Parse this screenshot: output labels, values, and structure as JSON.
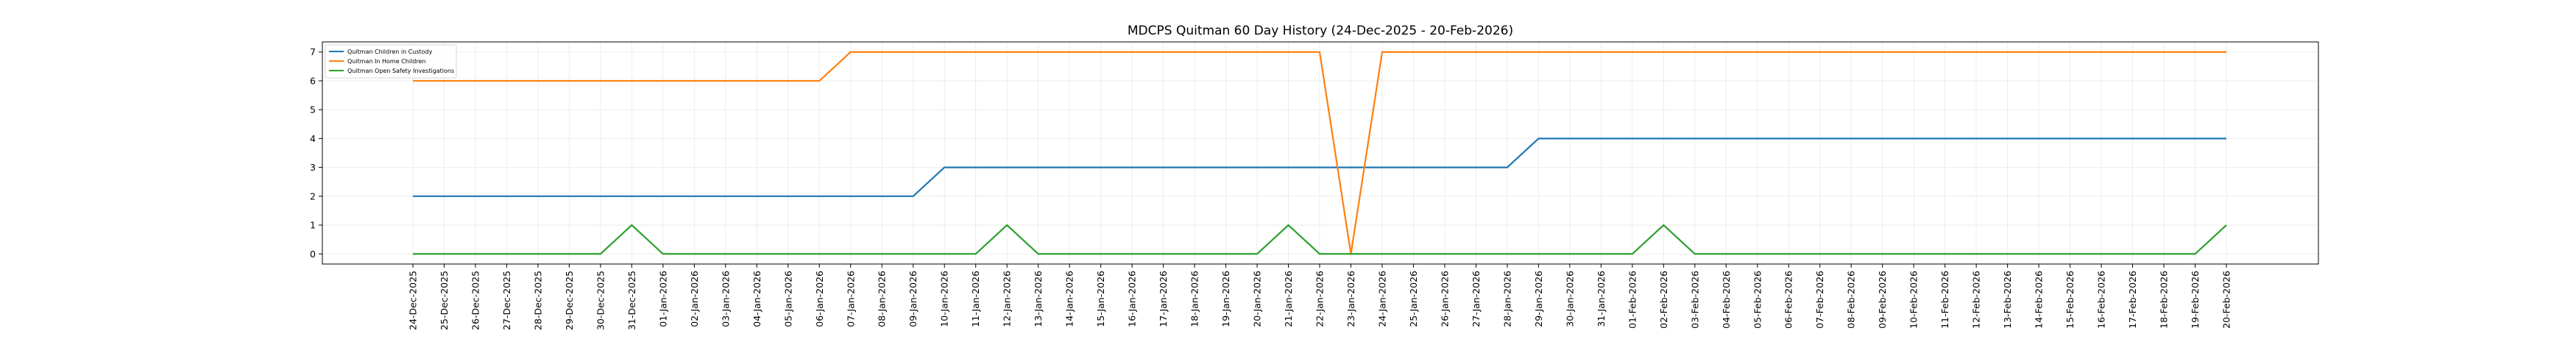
{
  "chart_data": {
    "type": "line",
    "title": "MDCPS Quitman 60 Day History (24-Dec-2025 - 20-Feb-2026)",
    "xlabel": "",
    "ylabel": "",
    "x": [
      "24-Dec-2025",
      "25-Dec-2025",
      "26-Dec-2025",
      "27-Dec-2025",
      "28-Dec-2025",
      "29-Dec-2025",
      "30-Dec-2025",
      "31-Dec-2025",
      "01-Jan-2026",
      "02-Jan-2026",
      "03-Jan-2026",
      "04-Jan-2026",
      "05-Jan-2026",
      "06-Jan-2026",
      "07-Jan-2026",
      "08-Jan-2026",
      "09-Jan-2026",
      "10-Jan-2026",
      "11-Jan-2026",
      "12-Jan-2026",
      "13-Jan-2026",
      "14-Jan-2026",
      "15-Jan-2026",
      "16-Jan-2026",
      "17-Jan-2026",
      "18-Jan-2026",
      "19-Jan-2026",
      "20-Jan-2026",
      "21-Jan-2026",
      "22-Jan-2026",
      "23-Jan-2026",
      "24-Jan-2026",
      "25-Jan-2026",
      "26-Jan-2026",
      "27-Jan-2026",
      "28-Jan-2026",
      "29-Jan-2026",
      "30-Jan-2026",
      "31-Jan-2026",
      "01-Feb-2026",
      "02-Feb-2026",
      "03-Feb-2026",
      "04-Feb-2026",
      "05-Feb-2026",
      "06-Feb-2026",
      "07-Feb-2026",
      "08-Feb-2026",
      "09-Feb-2026",
      "10-Feb-2026",
      "11-Feb-2026",
      "12-Feb-2026",
      "13-Feb-2026",
      "14-Feb-2026",
      "15-Feb-2026",
      "16-Feb-2026",
      "17-Feb-2026",
      "18-Feb-2026",
      "19-Feb-2026",
      "20-Feb-2026"
    ],
    "yticks": [
      0,
      1,
      2,
      3,
      4,
      5,
      6,
      7
    ],
    "ylim": [
      -0.35,
      7.35
    ],
    "grid": true,
    "legend_position": "top-left",
    "series": [
      {
        "name": "Quitman Children in Custody",
        "color": "#1f77b4",
        "values": [
          2,
          2,
          2,
          2,
          2,
          2,
          2,
          2,
          2,
          2,
          2,
          2,
          2,
          2,
          2,
          2,
          2,
          3,
          3,
          3,
          3,
          3,
          3,
          3,
          3,
          3,
          3,
          3,
          3,
          3,
          3,
          3,
          3,
          3,
          3,
          3,
          4,
          4,
          4,
          4,
          4,
          4,
          4,
          4,
          4,
          4,
          4,
          4,
          4,
          4,
          4,
          4,
          4,
          4,
          4,
          4,
          4,
          4,
          4
        ]
      },
      {
        "name": "Quitman In Home Children",
        "color": "#ff7f0e",
        "values": [
          6,
          6,
          6,
          6,
          6,
          6,
          6,
          6,
          6,
          6,
          6,
          6,
          6,
          6,
          7,
          7,
          7,
          7,
          7,
          7,
          7,
          7,
          7,
          7,
          7,
          7,
          7,
          7,
          7,
          7,
          0,
          7,
          7,
          7,
          7,
          7,
          7,
          7,
          7,
          7,
          7,
          7,
          7,
          7,
          7,
          7,
          7,
          7,
          7,
          7,
          7,
          7,
          7,
          7,
          7,
          7,
          7,
          7,
          7
        ]
      },
      {
        "name": "Quitman Open Safety Investigations",
        "color": "#2ca02c",
        "values": [
          0,
          0,
          0,
          0,
          0,
          0,
          0,
          1,
          0,
          0,
          0,
          0,
          0,
          0,
          0,
          0,
          0,
          0,
          0,
          1,
          0,
          0,
          0,
          0,
          0,
          0,
          0,
          0,
          1,
          0,
          0,
          0,
          0,
          0,
          0,
          0,
          0,
          0,
          0,
          0,
          1,
          0,
          0,
          0,
          0,
          0,
          0,
          0,
          0,
          0,
          0,
          0,
          0,
          0,
          0,
          0,
          0,
          0,
          1
        ]
      }
    ]
  }
}
